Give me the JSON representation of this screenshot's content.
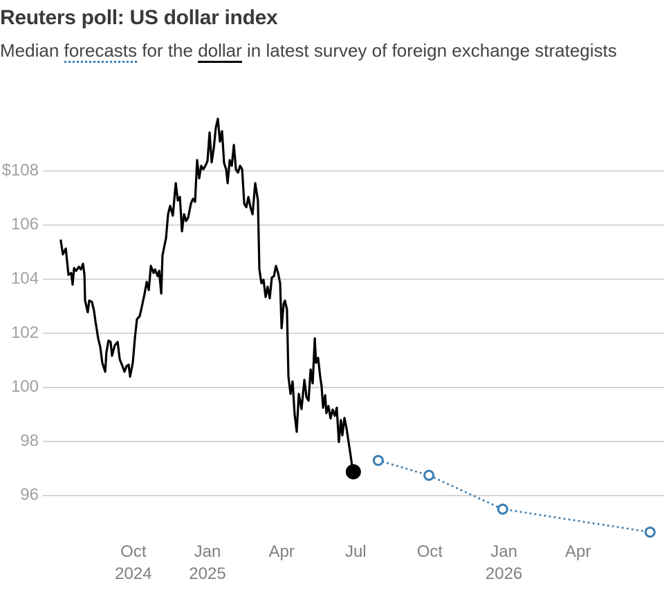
{
  "chart_data": {
    "type": "line",
    "title": "Reuters poll: US dollar index",
    "subtitle_parts": [
      "Median",
      "for the",
      "in latest survey of foreign exchange strategists"
    ],
    "xlim": [
      2024.3,
      2026.54
    ],
    "ylim": [
      94.4,
      111
    ],
    "yticks": [
      96,
      98,
      100,
      102,
      104,
      106,
      {
        "value": 108,
        "label": "$108"
      }
    ],
    "xticks": [
      {
        "value": 2024.75,
        "label": "Oct 2024"
      },
      {
        "value": 2025.0,
        "label": "Jan 2025"
      },
      {
        "value": 2025.25,
        "label": "Apr"
      },
      {
        "value": 2025.5,
        "label": "Jul"
      },
      {
        "value": 2025.75,
        "label": "Oct"
      },
      {
        "value": 2026.0,
        "label": "Jan 2026"
      },
      {
        "value": 2026.25,
        "label": "Apr"
      }
    ],
    "grid": true,
    "series": [
      {
        "name": "dollar",
        "color": "#000000",
        "style": "solid",
        "x": [
          2024.505,
          2024.512,
          2024.522,
          2024.531,
          2024.54,
          2024.545,
          2024.55,
          2024.557,
          2024.566,
          2024.573,
          2024.58,
          2024.585,
          2024.587,
          2024.596,
          2024.601,
          2024.61,
          2024.617,
          2024.622,
          2024.631,
          2024.638,
          2024.645,
          2024.655,
          2024.659,
          2024.666,
          2024.673,
          2024.678,
          2024.687,
          2024.697,
          2024.704,
          2024.713,
          2024.72,
          2024.727,
          2024.734,
          2024.739,
          2024.748,
          2024.755,
          2024.762,
          2024.771,
          2024.778,
          2024.788,
          2024.795,
          2024.802,
          2024.809,
          2024.818,
          2024.823,
          2024.832,
          2024.837,
          2024.844,
          2024.848,
          2024.855,
          2024.86,
          2024.867,
          2024.874,
          2024.883,
          2024.893,
          2024.9,
          2024.907,
          2024.914,
          2024.921,
          2024.928,
          2024.935,
          2024.944,
          2024.951,
          2024.958,
          2024.965,
          2024.972,
          2024.979,
          2024.986,
          2024.993,
          2025.0,
          2025.007,
          2025.014,
          2025.021,
          2025.028,
          2025.035,
          2025.042,
          2025.049,
          2025.056,
          2025.063,
          2025.068,
          2025.075,
          2025.082,
          2025.089,
          2025.096,
          2025.103,
          2025.11,
          2025.117,
          2025.124,
          2025.131,
          2025.138,
          2025.145,
          2025.152,
          2025.161,
          2025.17,
          2025.175,
          2025.182,
          2025.189,
          2025.196,
          2025.203,
          2025.21,
          2025.217,
          2025.224,
          2025.231,
          2025.238,
          2025.245,
          2025.25,
          2025.257,
          2025.261,
          2025.268,
          2025.273,
          2025.28,
          2025.287,
          2025.294,
          2025.301,
          2025.308,
          2025.317,
          2025.327,
          2025.334,
          2025.341,
          2025.348,
          2025.355,
          2025.362,
          2025.366,
          2025.373,
          2025.38,
          2025.385,
          2025.39,
          2025.397,
          2025.401,
          2025.408,
          2025.415,
          2025.422,
          2025.429,
          2025.436,
          2025.443,
          2025.45,
          2025.455,
          2025.462,
          2025.469,
          2025.476,
          2025.483,
          2025.488,
          2025.492
        ],
        "values": [
          105.43,
          104.92,
          105.13,
          104.16,
          104.23,
          103.8,
          104.41,
          104.31,
          104.46,
          104.36,
          104.57,
          104.16,
          103.21,
          102.78,
          103.21,
          103.16,
          102.83,
          102.45,
          101.81,
          101.5,
          100.91,
          100.58,
          101.3,
          101.73,
          101.68,
          101.17,
          101.55,
          101.68,
          101.04,
          100.79,
          100.58,
          100.79,
          100.84,
          100.4,
          100.91,
          101.81,
          102.52,
          102.63,
          102.96,
          103.47,
          103.9,
          103.6,
          104.49,
          104.23,
          104.36,
          104.11,
          104.31,
          103.47,
          104.87,
          105.26,
          105.51,
          106.4,
          106.71,
          106.35,
          107.55,
          106.91,
          107.04,
          105.77,
          106.4,
          106.15,
          106.28,
          106.79,
          106.97,
          106.86,
          108.4,
          107.73,
          108.19,
          108.06,
          108.19,
          108.37,
          109.42,
          108.32,
          108.83,
          109.6,
          109.93,
          109.09,
          109.47,
          108.29,
          108.06,
          107.55,
          108.4,
          108.19,
          108.96,
          108.06,
          107.94,
          108.19,
          108.06,
          106.79,
          106.66,
          107.04,
          106.66,
          106.4,
          107.55,
          106.91,
          104.36,
          103.85,
          103.98,
          103.34,
          103.72,
          103.29,
          104.06,
          104.11,
          104.49,
          104.23,
          103.85,
          102.19,
          103.08,
          103.21,
          102.88,
          100.4,
          99.76,
          100.22,
          99.0,
          98.36,
          99.76,
          99.2,
          100.28,
          99.64,
          99.51,
          100.66,
          100.15,
          101.81,
          100.91,
          101.09,
          100.4,
          100.02,
          99.25,
          99.71,
          99.05,
          99.31,
          98.85,
          99.18,
          98.95,
          99.25,
          97.98,
          98.79,
          98.23,
          98.87,
          98.49,
          97.98,
          97.47,
          97.08,
          96.88
        ]
      },
      {
        "name": "forecasts",
        "color": "#3a7fb5",
        "style": "dotted",
        "x": [
          2025.576,
          2025.747,
          2025.996,
          2026.493
        ],
        "values": [
          97.3,
          96.75,
          95.5,
          94.65
        ]
      }
    ]
  }
}
